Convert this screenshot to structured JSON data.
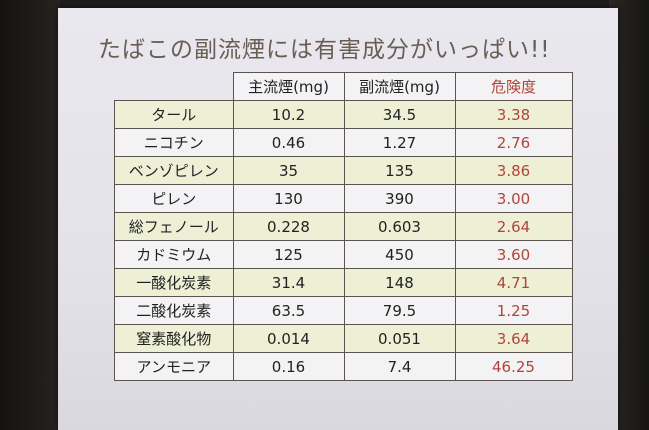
{
  "title": "たばこの副流煙には有害成分がいっぱい!!",
  "table": {
    "headers": [
      "",
      "主流煙(mg)",
      "副流煙(mg)",
      "危険度"
    ],
    "rows": [
      {
        "name": "タール",
        "main": "10.2",
        "side": "34.5",
        "risk": "3.38"
      },
      {
        "name": "ニコチン",
        "main": "0.46",
        "side": "1.27",
        "risk": "2.76"
      },
      {
        "name": "ベンゾピレン",
        "main": "35",
        "side": "135",
        "risk": "3.86"
      },
      {
        "name": "ピレン",
        "main": "130",
        "side": "390",
        "risk": "3.00"
      },
      {
        "name": "総フェノール",
        "main": "0.228",
        "side": "0.603",
        "risk": "2.64"
      },
      {
        "name": "カドミウム",
        "main": "125",
        "side": "450",
        "risk": "3.60"
      },
      {
        "name": "一酸化炭素",
        "main": "31.4",
        "side": "148",
        "risk": "4.71"
      },
      {
        "name": "二酸化炭素",
        "main": "63.5",
        "side": "79.5",
        "risk": "1.25"
      },
      {
        "name": "窒素酸化物",
        "main": "0.014",
        "side": "0.051",
        "risk": "3.64"
      },
      {
        "name": "アンモニア",
        "main": "0.16",
        "side": "7.4",
        "risk": "46.25"
      }
    ]
  },
  "colors": {
    "title_text": "#6a5e54",
    "risk_text": "#b2443a",
    "row_highlight": "#eef0d6",
    "row_plain": "#f3f2f4",
    "screen_background": "#e6e5eb"
  }
}
